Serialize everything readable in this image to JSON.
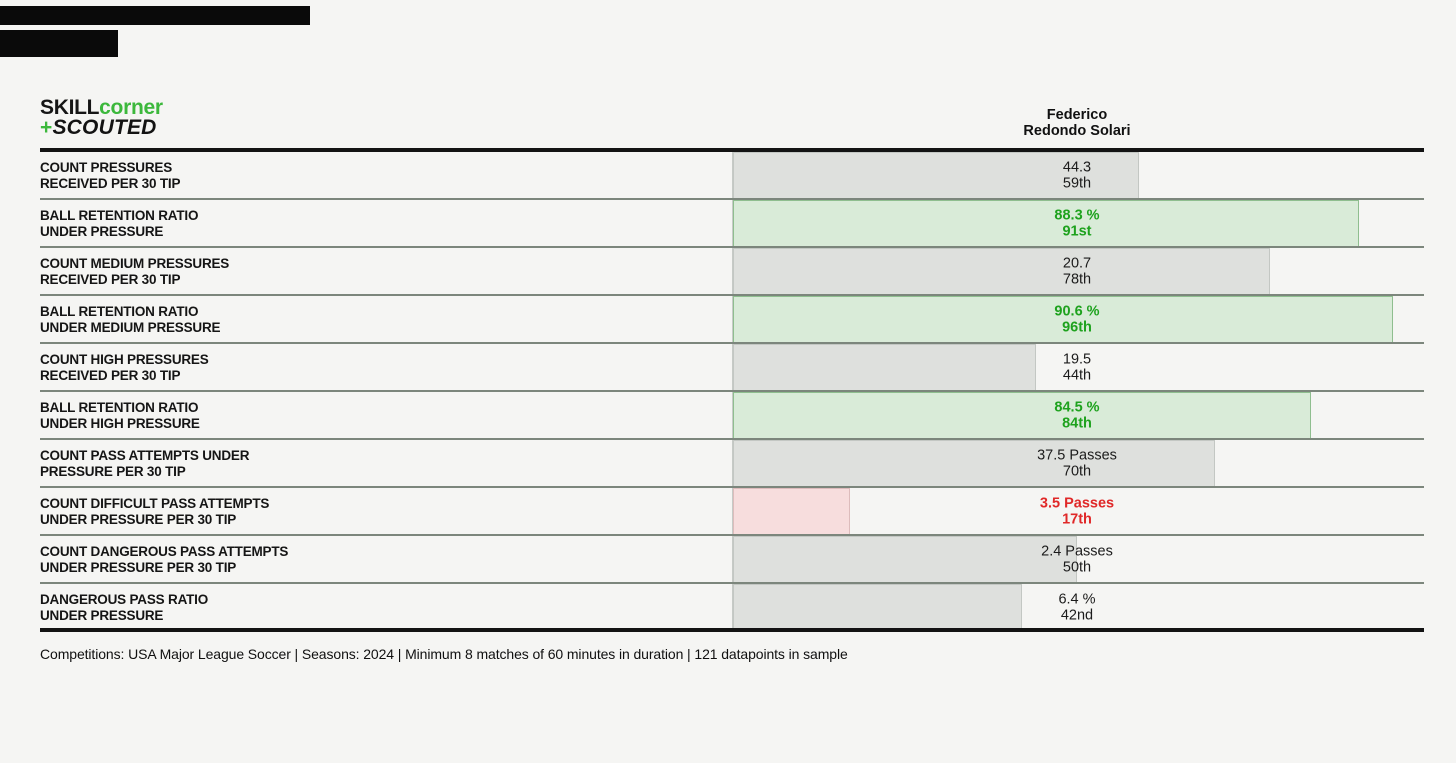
{
  "branding": {
    "logo_skill": "SKILL",
    "logo_corner": "corner",
    "logo_plus": "+",
    "logo_scouted": "SCOUTED"
  },
  "header": {
    "player_name_line1": "Federico",
    "player_name_line2": "Redondo Solari"
  },
  "chart_data": {
    "type": "bar",
    "title": "Pressure profile percentile bars",
    "player": "Federico Redondo Solari",
    "x_axis": "percentile rank",
    "xlim": [
      0,
      100
    ],
    "legend_position": "none",
    "grid": false,
    "rows": [
      {
        "label_line1": "COUNT PRESSURES",
        "label_line2": "RECEIVED PER 30 TIP",
        "value": "44.3",
        "percentile_label": "59th",
        "percentile": 59,
        "category": "neutral"
      },
      {
        "label_line1": "BALL RETENTION RATIO",
        "label_line2": "UNDER PRESSURE",
        "value": "88.3 %",
        "percentile_label": "91st",
        "percentile": 91,
        "category": "positive"
      },
      {
        "label_line1": "COUNT MEDIUM PRESSURES",
        "label_line2": "RECEIVED PER 30 TIP",
        "value": "20.7",
        "percentile_label": "78th",
        "percentile": 78,
        "category": "neutral"
      },
      {
        "label_line1": "BALL RETENTION RATIO",
        "label_line2": "UNDER MEDIUM PRESSURE",
        "value": "90.6 %",
        "percentile_label": "96th",
        "percentile": 96,
        "category": "positive"
      },
      {
        "label_line1": "COUNT HIGH PRESSURES",
        "label_line2": "RECEIVED PER 30 TIP",
        "value": "19.5",
        "percentile_label": "44th",
        "percentile": 44,
        "category": "neutral"
      },
      {
        "label_line1": "BALL RETENTION RATIO",
        "label_line2": "UNDER HIGH PRESSURE",
        "value": "84.5 %",
        "percentile_label": "84th",
        "percentile": 84,
        "category": "positive"
      },
      {
        "label_line1": "COUNT PASS ATTEMPTS UNDER",
        "label_line2": "PRESSURE PER 30 TIP",
        "value": "37.5 Passes",
        "percentile_label": "70th",
        "percentile": 70,
        "category": "neutral"
      },
      {
        "label_line1": "COUNT DIFFICULT PASS ATTEMPTS",
        "label_line2": "UNDER PRESSURE PER 30 TIP",
        "value": "3.5 Passes",
        "percentile_label": "17th",
        "percentile": 17,
        "category": "negative"
      },
      {
        "label_line1": "COUNT DANGEROUS PASS ATTEMPTS",
        "label_line2": "UNDER PRESSURE PER 30 TIP",
        "value": "2.4 Passes",
        "percentile_label": "50th",
        "percentile": 50,
        "category": "neutral"
      },
      {
        "label_line1": "DANGEROUS PASS RATIO",
        "label_line2": "UNDER PRESSURE",
        "value": "6.4 %",
        "percentile_label": "42nd",
        "percentile": 42,
        "category": "neutral"
      }
    ]
  },
  "footer": {
    "text": "Competitions: USA Major League Soccer | Seasons: 2024 | Minimum 8 matches of 60 minutes in duration | 121 datapoints in sample"
  },
  "colors": {
    "background": "#f5f5f3",
    "separator": "#7c867c",
    "rule_black": "#131313",
    "bar_gray": "#dee0dd",
    "bar_green": "#d9ebd8",
    "bar_pink": "#f7dddd",
    "text_green": "#1ea21e",
    "text_red": "#e02828",
    "logo_green": "#3cb83c"
  }
}
